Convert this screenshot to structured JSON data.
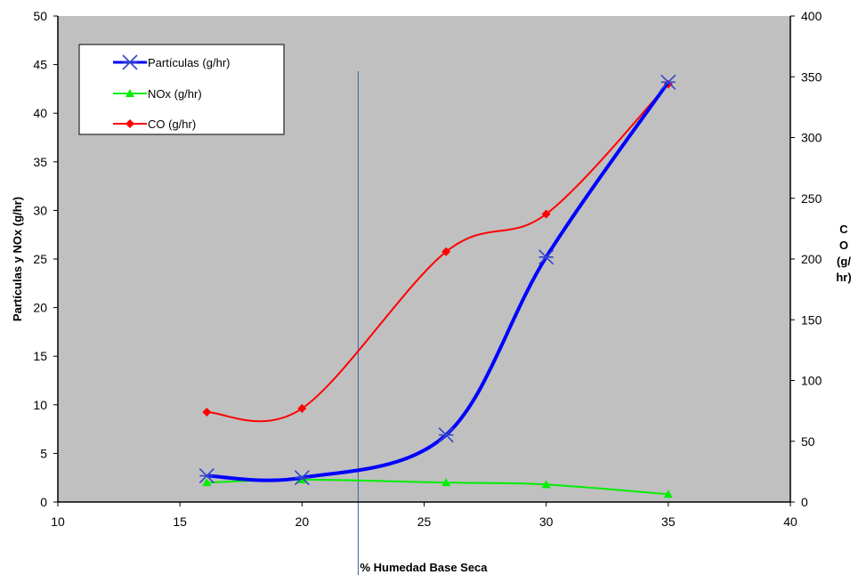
{
  "chart_data": {
    "type": "line",
    "xlabel": "% Humedad Base Seca",
    "ylabel": "Partículas y NOx (g/hr)",
    "y2label_lines": [
      "C",
      "O",
      "(g/",
      "hr)"
    ],
    "xlim": [
      10,
      40
    ],
    "ylim": [
      0,
      50
    ],
    "y2lim": [
      0,
      400
    ],
    "x_ticks": [
      10,
      15,
      20,
      25,
      30,
      35,
      40
    ],
    "y_ticks": [
      0,
      5,
      10,
      15,
      20,
      25,
      30,
      35,
      40,
      45,
      50
    ],
    "y2_ticks": [
      0,
      50,
      100,
      150,
      200,
      250,
      300,
      350,
      400
    ],
    "grid": false,
    "plot_background": "#c0c0c0",
    "legend_position": "top-left",
    "reference_line_x": 22.3,
    "reference_line_color": "#3a5fa8",
    "series": [
      {
        "name": "Partículas (g/hr)",
        "axis": "left",
        "color": "#0000ff",
        "marker": "asterisk",
        "x": [
          16.1,
          20,
          25.9,
          30,
          35
        ],
        "y": [
          2.7,
          2.5,
          6.9,
          25.2,
          43.2
        ]
      },
      {
        "name": "NOx (g/hr)",
        "axis": "left",
        "color": "#00ee00",
        "marker": "triangle",
        "x": [
          16.1,
          20,
          25.9,
          30,
          35
        ],
        "y": [
          2.0,
          2.3,
          2.0,
          1.8,
          0.8
        ]
      },
      {
        "name": "CO (g/hr)",
        "axis": "right",
        "color": "#ff0000",
        "marker": "diamond",
        "x": [
          16.1,
          20,
          25.9,
          30,
          35
        ],
        "y": [
          74,
          77,
          206,
          237,
          344
        ]
      }
    ]
  }
}
